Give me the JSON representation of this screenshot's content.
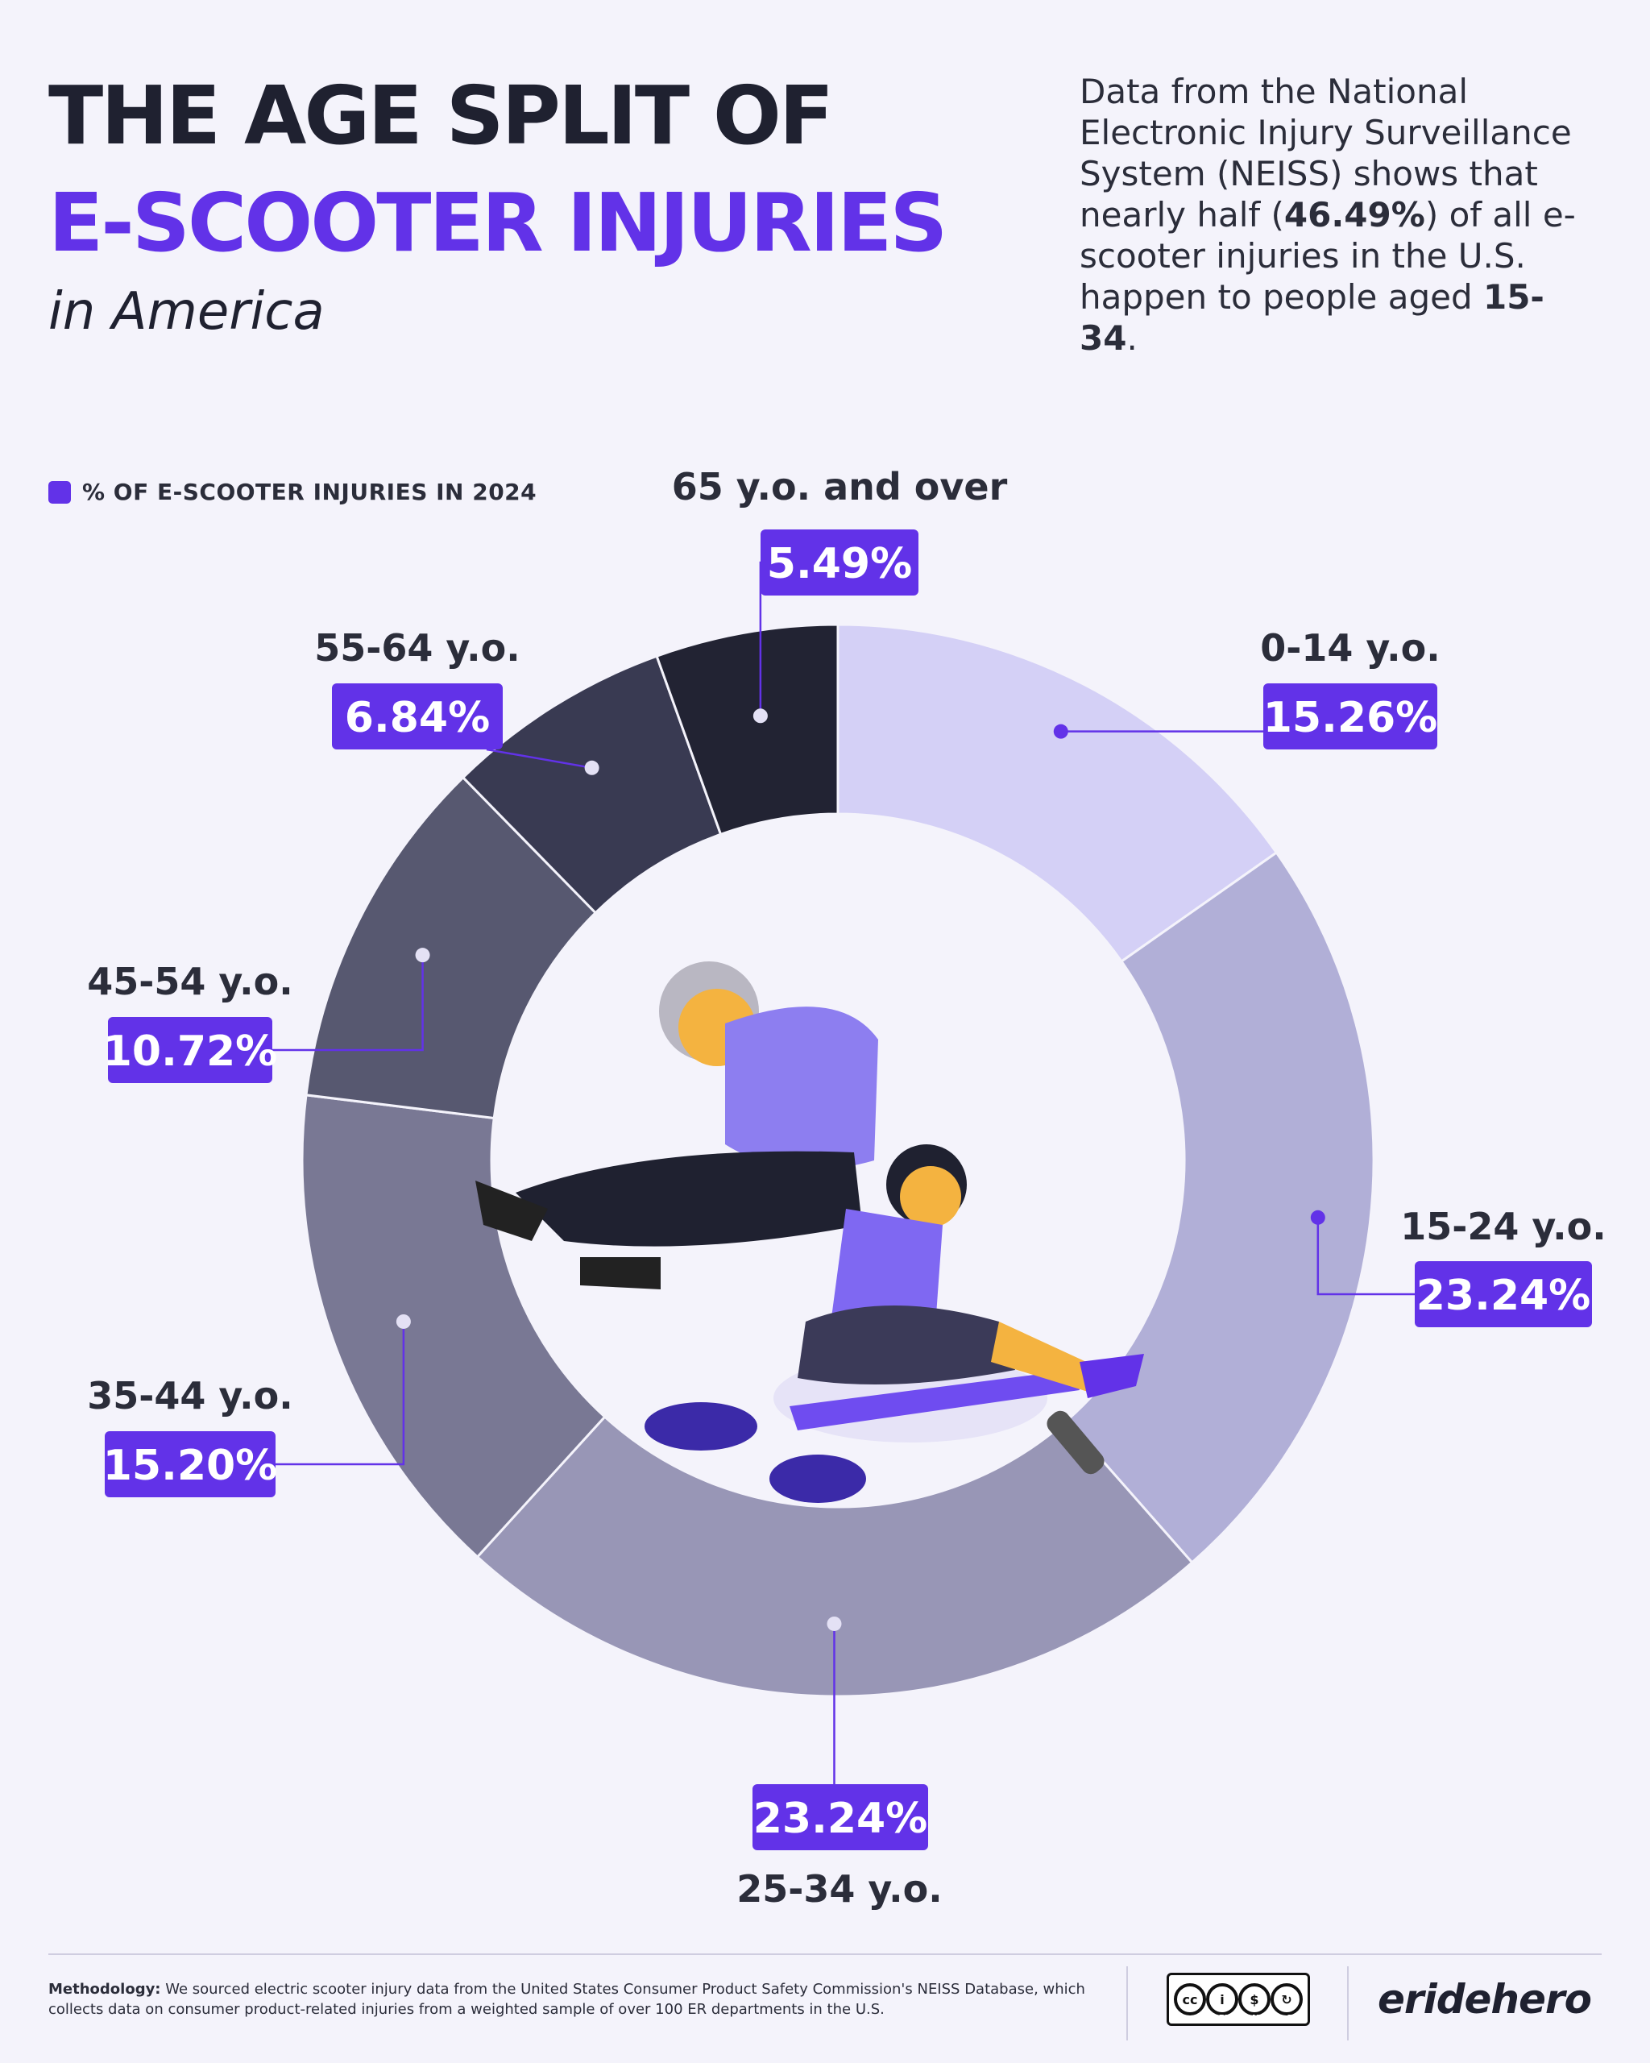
{
  "title": {
    "line1": "THE AGE SPLIT OF",
    "line2": "E-SCOOTER INJURIES",
    "subtitle": "in America"
  },
  "intro": {
    "part1": "Data from the National Electronic Injury Surveillance System (NEISS) shows that nearly half (",
    "highlight1": "46.49%",
    "part2": ") of all e-scooter injuries in the U.S. happen to people aged ",
    "highlight2": "15-34",
    "part3": "."
  },
  "legend": {
    "label": "% OF E-SCOOTER INJURIES IN 2024"
  },
  "colors": {
    "accent": "#6232e8",
    "background": "#f4f3fb",
    "text_dark": "#1f2130"
  },
  "chart_data": {
    "type": "pie",
    "variant": "donut",
    "series_name": "% OF E-SCOOTER INJURIES IN 2024",
    "slices": [
      {
        "category": "0-14 y.o.",
        "label": "15.26%",
        "value": 15.26,
        "color": "#d4d0f6"
      },
      {
        "category": "15-24 y.o.",
        "label": "23.24%",
        "value": 23.24,
        "color": "#b1afd7"
      },
      {
        "category": "25-34 y.o.",
        "label": "23.24%",
        "value": 23.24,
        "color": "#9896b6"
      },
      {
        "category": "35-44 y.o.",
        "label": "15.20%",
        "value": 15.2,
        "color": "#797894"
      },
      {
        "category": "45-54 y.o.",
        "label": "10.72%",
        "value": 10.72,
        "color": "#575870"
      },
      {
        "category": "55-64 y.o.",
        "label": "6.84%",
        "value": 6.84,
        "color": "#393a52"
      },
      {
        "category": "65 y.o. and over",
        "label": "5.49%",
        "value": 5.49,
        "color": "#222333"
      }
    ]
  },
  "footer": {
    "methodology_label": "Methodology:",
    "methodology_text": "We sourced electric scooter injury data from the United States Consumer Product Safety Commission's NEISS Database, which collects data on consumer product-related injuries from a weighted sample of over 100 ER departments in the U.S.",
    "license": {
      "by": "BY",
      "nc": "NC",
      "sa": "SA",
      "cc": "cc"
    },
    "brand": "eridehero"
  }
}
